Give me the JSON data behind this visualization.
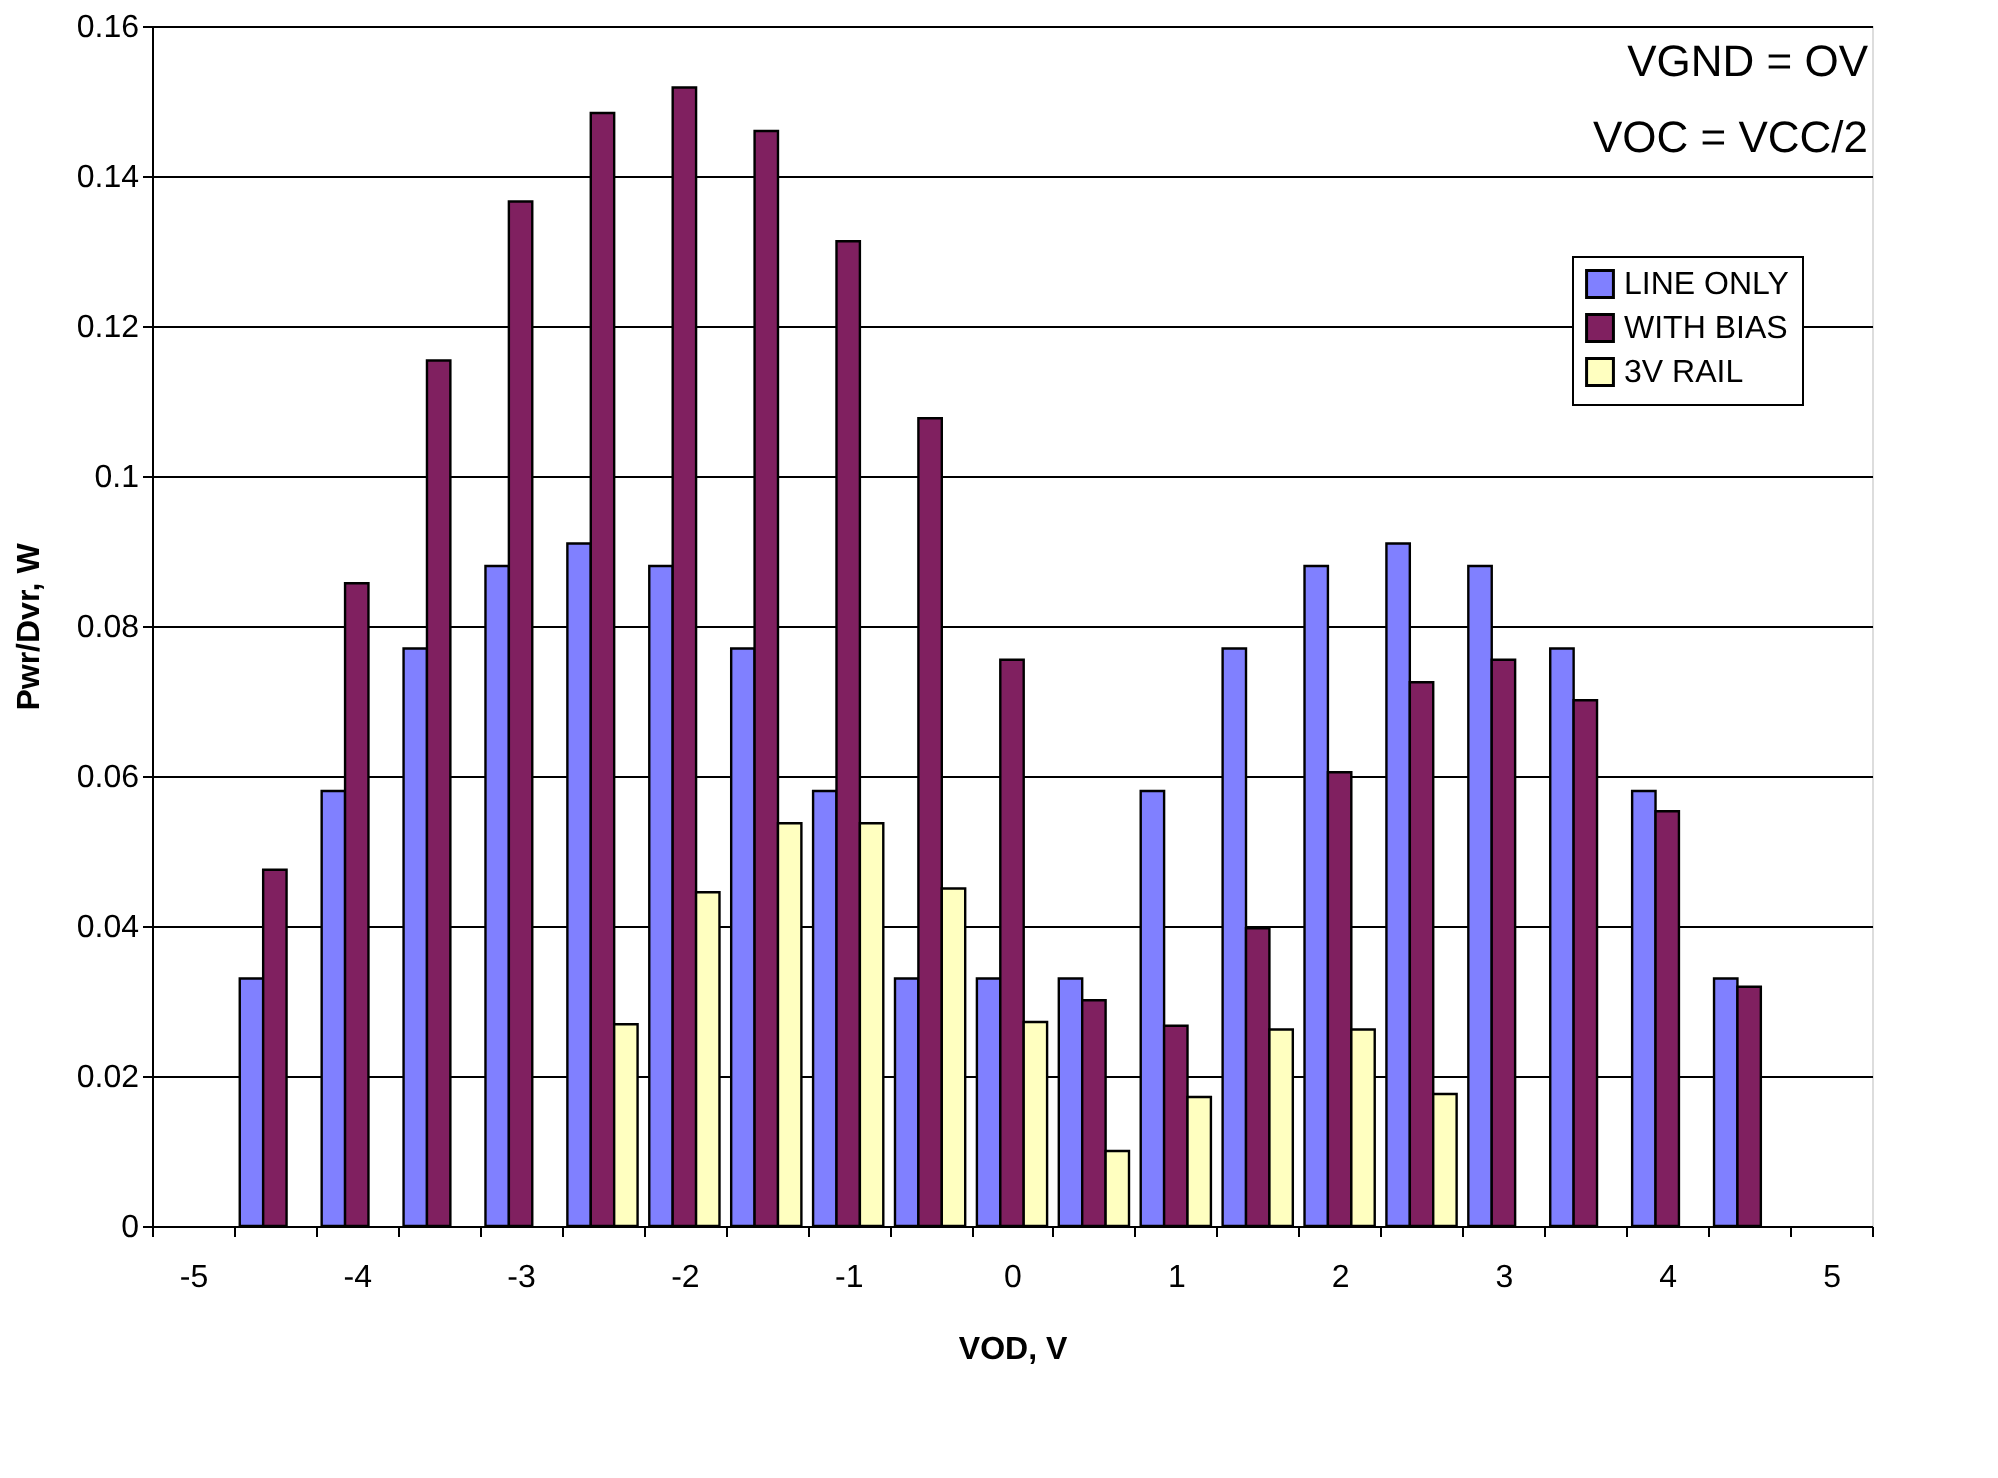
{
  "chart_data": {
    "type": "bar",
    "xlabel": "VOD, V",
    "ylabel": "Pwr/Dvr, W",
    "categories": [
      "-5",
      null,
      "-4",
      null,
      "-3",
      null,
      "-2",
      null,
      "-1",
      null,
      "0",
      null,
      "1",
      null,
      "2",
      null,
      "3",
      null,
      "4",
      null,
      "5"
    ],
    "series": [
      {
        "name": "LINE ONLY",
        "color": "#8080ff",
        "values": [
          null,
          0.033,
          0.058,
          0.077,
          0.088,
          0.091,
          0.088,
          0.077,
          0.058,
          0.033,
          0.033,
          0.033,
          0.058,
          0.077,
          0.088,
          0.091,
          0.088,
          0.077,
          0.058,
          0.033,
          null
        ]
      },
      {
        "name": "WITH BIAS",
        "color": "#802060",
        "values": [
          null,
          0.0475,
          0.0857,
          0.1154,
          0.1366,
          0.1484,
          0.1518,
          0.146,
          0.1313,
          0.1077,
          0.0755,
          0.0301,
          0.0267,
          0.0397,
          0.0605,
          0.0725,
          0.0755,
          0.0701,
          0.0553,
          0.0319,
          null
        ]
      },
      {
        "name": "3V RAIL",
        "color": "#ffffc0",
        "values": [
          null,
          null,
          null,
          null,
          null,
          0.0269,
          0.0445,
          0.0537,
          0.0537,
          0.045,
          0.0272,
          0.01,
          0.0172,
          0.0262,
          0.0262,
          0.0176,
          null,
          null,
          null,
          null,
          null
        ]
      }
    ],
    "ylim": [
      0,
      0.16
    ],
    "yticks": [
      0,
      0.02,
      0.04,
      0.06,
      0.08,
      0.1,
      0.12,
      0.14,
      0.16
    ],
    "grid": "y",
    "legend": "top right",
    "annotations": [
      "VGND = OV",
      "VOC = VCC/2"
    ]
  }
}
